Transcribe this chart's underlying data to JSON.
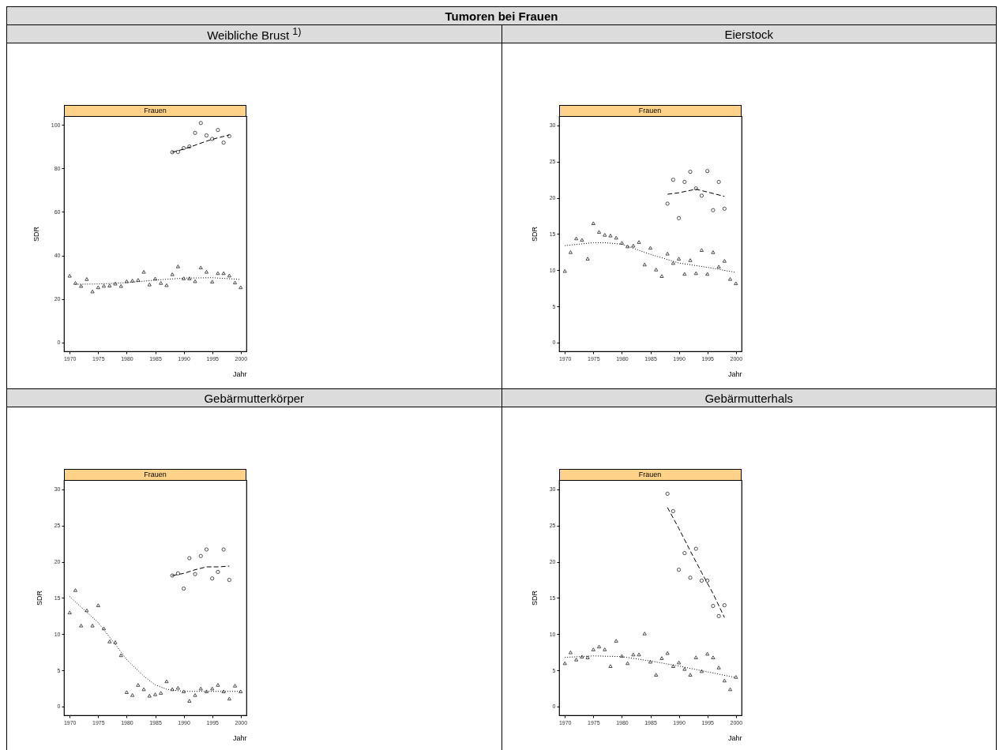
{
  "chart_data": [
    {
      "type": "other",
      "title": "Tumoren bei Frauen"
    },
    {
      "type": "scatter",
      "title": "Weibliche Brust $^{1)}$",
      "subtitle": "Frauen",
      "xlabel": "Jahr",
      "ylabel": "SDR",
      "xlim": [
        1969,
        2001
      ],
      "xticks": [
        1970,
        1975,
        1980,
        1985,
        1990,
        1995,
        2000
      ],
      "ylim": [
        -4,
        104
      ],
      "yticks": [
        0,
        20,
        40,
        60,
        80,
        100
      ],
      "series": [
        {
          "type": "scatter",
          "marker": "triangle",
          "color": "#000000",
          "x": [
            1970,
            1971,
            1972,
            1973,
            1974,
            1975,
            1976,
            1977,
            1978,
            1979,
            1980,
            1981,
            1982,
            1983,
            1984,
            1985,
            1986,
            1987,
            1988,
            1989,
            1990,
            1991,
            1992,
            1993,
            1994,
            1995,
            1996,
            1997,
            1998,
            1999,
            2000
          ],
          "values": [
            30.7,
            27.4,
            26.0,
            29.2,
            23.5,
            25.4,
            26.1,
            26.2,
            27.1,
            26.0,
            28.2,
            28.5,
            28.8,
            32.5,
            26.7,
            29.4,
            27.4,
            26.4,
            31.4,
            35.0,
            29.5,
            29.5,
            28.2,
            34.5,
            32.5,
            28.0,
            31.9,
            31.9,
            30.8,
            27.6,
            25.4
          ]
        },
        {
          "type": "scatter",
          "marker": "circle",
          "color": "#000000",
          "x": [
            1988,
            1989,
            1990,
            1991,
            1992,
            1993,
            1994,
            1995,
            1996,
            1997,
            1998
          ],
          "values": [
            87.4,
            87.5,
            89.3,
            90.0,
            96.3,
            100.8,
            95.1,
            93.5,
            97.6,
            91.8,
            94.8
          ]
        },
        {
          "type": "line",
          "line_style": "dotted",
          "color": "#000000",
          "x": [
            1971,
            1975,
            1980,
            1985,
            1990,
            1995,
            2000
          ],
          "values": [
            26.8,
            26.9,
            27.5,
            28.7,
            29.6,
            29.8,
            29.0
          ]
        },
        {
          "type": "line",
          "line_style": "dashed",
          "color": "#000000",
          "x": [
            1988,
            1990,
            1992,
            1994,
            1996,
            1998
          ],
          "values": [
            87.4,
            88.8,
            90.6,
            92.5,
            94.0,
            95.3
          ]
        }
      ]
    },
    {
      "type": "scatter",
      "title": "Eierstock",
      "subtitle": "Frauen",
      "xlabel": "Jahr",
      "ylabel": "SDR",
      "xlim": [
        1969,
        2001
      ],
      "xticks": [
        1970,
        1975,
        1980,
        1985,
        1990,
        1995,
        2000
      ],
      "ylim": [
        -1.2,
        31.3
      ],
      "yticks": [
        0,
        5,
        10,
        15,
        20,
        25,
        30
      ],
      "series": [
        {
          "type": "scatter",
          "marker": "triangle",
          "color": "#000000",
          "x": [
            1970,
            1971,
            1972,
            1973,
            1974,
            1975,
            1976,
            1977,
            1978,
            1979,
            1980,
            1981,
            1982,
            1983,
            1984,
            1985,
            1986,
            1987,
            1988,
            1989,
            1990,
            1991,
            1992,
            1993,
            1994,
            1995,
            1996,
            1997,
            1998,
            1999,
            2000
          ],
          "values": [
            9.9,
            12.5,
            14.4,
            14.2,
            11.6,
            16.5,
            15.3,
            14.9,
            14.8,
            14.5,
            13.8,
            13.3,
            13.4,
            13.9,
            10.8,
            13.1,
            10.1,
            9.2,
            12.3,
            11.0,
            11.6,
            9.5,
            11.4,
            9.6,
            12.8,
            9.5,
            12.5,
            10.5,
            11.3,
            8.8,
            8.2
          ]
        },
        {
          "type": "scatter",
          "marker": "circle",
          "color": "#000000",
          "x": [
            1988,
            1989,
            1990,
            1991,
            1992,
            1993,
            1994,
            1995,
            1996,
            1997,
            1998
          ],
          "values": [
            19.2,
            22.5,
            17.2,
            22.2,
            23.6,
            21.3,
            20.3,
            23.7,
            18.3,
            22.2,
            18.5
          ]
        },
        {
          "type": "line",
          "line_style": "dotted",
          "color": "#000000",
          "x": [
            1970,
            1975,
            1977,
            1980,
            1985,
            1990,
            1995,
            2000
          ],
          "values": [
            13.4,
            13.8,
            13.8,
            13.6,
            12.2,
            11.0,
            10.4,
            9.7
          ]
        },
        {
          "type": "line",
          "line_style": "dashed",
          "color": "#000000",
          "x": [
            1988,
            1990,
            1993,
            1996,
            1998
          ],
          "values": [
            20.5,
            20.7,
            21.2,
            20.6,
            20.2
          ]
        }
      ]
    },
    {
      "type": "scatter",
      "title": "Gebärmutterkörper",
      "subtitle": "Frauen",
      "xlabel": "Jahr",
      "ylabel": "SDR",
      "xlim": [
        1969,
        2001
      ],
      "xticks": [
        1970,
        1975,
        1980,
        1985,
        1990,
        1995,
        2000
      ],
      "ylim": [
        -1.2,
        31.3
      ],
      "yticks": [
        0,
        5,
        10,
        15,
        20,
        25,
        30
      ],
      "series": [
        {
          "type": "scatter",
          "marker": "triangle",
          "color": "#000000",
          "x": [
            1970,
            1971,
            1972,
            1973,
            1974,
            1975,
            1976,
            1977,
            1978,
            1979,
            1980,
            1981,
            1982,
            1983,
            1984,
            1985,
            1986,
            1987,
            1988,
            1989,
            1990,
            1991,
            1992,
            1993,
            1994,
            1995,
            1996,
            1997,
            1998,
            1999,
            2000
          ],
          "values": [
            13.0,
            16.1,
            11.2,
            13.3,
            11.2,
            14.0,
            10.8,
            9.0,
            8.9,
            7.1,
            2.0,
            1.6,
            3.0,
            2.4,
            1.5,
            1.7,
            1.9,
            3.5,
            2.4,
            2.6,
            2.1,
            0.8,
            1.6,
            2.5,
            2.1,
            2.5,
            3.0,
            2.1,
            1.1,
            2.9,
            2.1
          ]
        },
        {
          "type": "scatter",
          "marker": "circle",
          "color": "#000000",
          "x": [
            1988,
            1989,
            1990,
            1991,
            1992,
            1993,
            1994,
            1995,
            1996,
            1997,
            1998
          ],
          "values": [
            18.1,
            18.4,
            16.3,
            20.5,
            18.3,
            20.8,
            21.7,
            17.7,
            18.6,
            21.7,
            17.5
          ]
        },
        {
          "type": "line",
          "line_style": "dotted",
          "color": "#000000",
          "x": [
            1970,
            1975,
            1978,
            1980,
            1983,
            1985,
            1987,
            1990,
            1995,
            2000
          ],
          "values": [
            15.2,
            11.6,
            8.6,
            6.5,
            4.2,
            3.0,
            2.4,
            2.1,
            2.1,
            2.1
          ]
        },
        {
          "type": "line",
          "line_style": "dashed",
          "color": "#000000",
          "x": [
            1988,
            1990,
            1992,
            1994,
            1996,
            1998
          ],
          "values": [
            18.1,
            18.4,
            18.9,
            19.3,
            19.3,
            19.4
          ]
        }
      ]
    },
    {
      "type": "scatter",
      "title": "Gebärmutterhals",
      "subtitle": "Frauen",
      "xlabel": "Jahr",
      "ylabel": "SDR",
      "xlim": [
        1969,
        2001
      ],
      "xticks": [
        1970,
        1975,
        1980,
        1985,
        1990,
        1995,
        2000
      ],
      "ylim": [
        -1.2,
        31.3
      ],
      "yticks": [
        0,
        5,
        10,
        15,
        20,
        25,
        30
      ],
      "series": [
        {
          "type": "scatter",
          "marker": "triangle",
          "color": "#000000",
          "x": [
            1970,
            1971,
            1972,
            1973,
            1974,
            1975,
            1976,
            1977,
            1978,
            1979,
            1980,
            1981,
            1982,
            1983,
            1984,
            1985,
            1986,
            1987,
            1988,
            1989,
            1990,
            1991,
            1992,
            1993,
            1994,
            1995,
            1996,
            1997,
            1998,
            1999,
            2000
          ],
          "values": [
            6.0,
            7.5,
            6.5,
            6.9,
            6.8,
            7.9,
            8.3,
            7.9,
            5.6,
            9.1,
            7.0,
            6.0,
            7.2,
            7.2,
            10.1,
            6.2,
            4.4,
            6.7,
            7.4,
            5.6,
            6.1,
            5.2,
            4.4,
            6.8,
            4.9,
            7.3,
            6.8,
            5.4,
            3.6,
            2.4,
            4.1
          ]
        },
        {
          "type": "scatter",
          "marker": "circle",
          "color": "#000000",
          "x": [
            1988,
            1989,
            1990,
            1991,
            1992,
            1993,
            1994,
            1995,
            1996,
            1997,
            1998
          ],
          "values": [
            29.4,
            27.0,
            18.9,
            21.2,
            17.8,
            21.8,
            17.4,
            17.4,
            13.9,
            12.5,
            14.0
          ]
        },
        {
          "type": "line",
          "line_style": "dotted",
          "color": "#000000",
          "x": [
            1970,
            1975,
            1980,
            1985,
            1990,
            1995,
            2000
          ],
          "values": [
            6.8,
            7.0,
            6.9,
            6.3,
            5.6,
            4.8,
            4.0
          ]
        },
        {
          "type": "line",
          "line_style": "dashed",
          "color": "#000000",
          "x": [
            1988,
            1990,
            1992,
            1994,
            1996,
            1998
          ],
          "values": [
            27.5,
            24.6,
            21.5,
            18.5,
            15.6,
            12.3
          ]
        }
      ]
    }
  ]
}
